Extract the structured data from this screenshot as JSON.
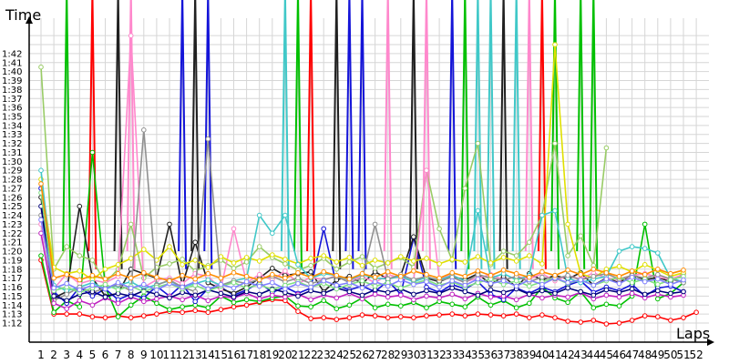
{
  "chart_data": {
    "type": "line",
    "title": "",
    "ylabel": "Time",
    "xlabel": "Laps",
    "grid": true,
    "legend": "none",
    "x": [
      1,
      2,
      3,
      4,
      5,
      6,
      7,
      8,
      9,
      10,
      11,
      12,
      13,
      14,
      15,
      16,
      17,
      18,
      19,
      20,
      21,
      22,
      23,
      24,
      25,
      26,
      27,
      28,
      29,
      30,
      31,
      32,
      33,
      34,
      35,
      36,
      37,
      38,
      39,
      40,
      41,
      42,
      43,
      44,
      45,
      46,
      47,
      48,
      49,
      50,
      51,
      52
    ],
    "y_ticks": [
      "1:12",
      "1:13",
      "1:14",
      "1:15",
      "1:16",
      "1:17",
      "1:18",
      "1:19",
      "1:20",
      "1:21",
      "1:22",
      "1:23",
      "1:24",
      "1:25",
      "1:26",
      "1:27",
      "1:28",
      "1:29",
      "1:30",
      "1:31",
      "1:32",
      "1:33",
      "1:34",
      "1:35",
      "1:36",
      "1:37",
      "1:38",
      "1:39",
      "1:40",
      "1:41",
      "1:42"
    ],
    "ylim": [
      71,
      104
    ],
    "series": [
      {
        "color": "#ff0000",
        "values": [
          79,
          73,
          73,
          73,
          72.7,
          72.6,
          72.8,
          72.6,
          72.8,
          73,
          73.3,
          73.2,
          73.4,
          73.2,
          73.5,
          73.8,
          74,
          74.3,
          74.6,
          74.5,
          73.3,
          72.5,
          72.6,
          72.4,
          72.6,
          72.9,
          72.8,
          72.6,
          72.7,
          72.6,
          72.8,
          72.9,
          73,
          72.8,
          73,
          72.9,
          72.8,
          73,
          72.6,
          72.9,
          72.6,
          72.2,
          72.1,
          72.3,
          71.9,
          72,
          72.3,
          72.8,
          72.7,
          72.3,
          72.6,
          73.2
        ]
      },
      {
        "color": "#00c000",
        "values": [
          79.5,
          73.2,
          74.5,
          73.8,
          91,
          76,
          72.7,
          74,
          75,
          74.2,
          73.5,
          73.8,
          74,
          73.7,
          75,
          74.3,
          74.6,
          74.4,
          74.8,
          75,
          73.9,
          73.8,
          74.5,
          73.6,
          74,
          74.8,
          73.7,
          74.1,
          73.9,
          74.3,
          73.7,
          74.4,
          74.1,
          73.8,
          74.9,
          74,
          74.5,
          73.7,
          74.2,
          76,
          74.8,
          74.3,
          75.5,
          73.7,
          74.1,
          73.9,
          75,
          83,
          74.7,
          75.3,
          76.5,
          null
        ]
      },
      {
        "color": "#1414d8",
        "values": [
          87,
          75.5,
          74.2,
          76,
          75,
          75.8,
          74.6,
          75.2,
          74.8,
          76.1,
          75,
          76.3,
          74.4,
          75.8,
          76,
          75.1,
          75.7,
          76.5,
          75.4,
          76,
          75.3,
          75.9,
          82.5,
          76.2,
          75.7,
          76.1,
          75.5,
          76.7,
          75.2,
          81.5,
          76,
          75.4,
          76.3,
          75.8,
          76.6,
          75.2,
          74.6,
          75.9,
          75.3,
          76,
          75.5,
          76.2,
          76.7,
          75.4,
          76,
          75.6,
          76.3,
          75,
          75.9,
          76.1,
          75.5,
          null
        ]
      },
      {
        "color": "#202020",
        "values": [
          86,
          74.8,
          75.5,
          85,
          77,
          75,
          75.3,
          78,
          77.5,
          77,
          83,
          76.2,
          81,
          76.5,
          75.8,
          75.3,
          76,
          77,
          78.1,
          77.3,
          77.5,
          77.7,
          75.5,
          76.8,
          77.2,
          76.4,
          77.7,
          76.9,
          77.3,
          81.6,
          77,
          76.6,
          77.2,
          76.8,
          77.5,
          76.3,
          77.2,
          76,
          77.5,
          76.8,
          77.3,
          76.9,
          77.6,
          76.2,
          77,
          76.5,
          77.4,
          76.8,
          77.1,
          76.6,
          77.5,
          null
        ]
      },
      {
        "color": "#99cc66",
        "values": [
          100.5,
          78,
          80.5,
          79.5,
          79,
          76.5,
          78,
          83,
          77,
          78.2,
          78.6,
          79.1,
          77.8,
          78.4,
          79,
          78.1,
          78.8,
          80.5,
          79.3,
          78.6,
          77.9,
          78.4,
          79.2,
          78,
          78.8,
          79.4,
          78.1,
          78.7,
          79.3,
          78.2,
          89,
          82.5,
          79,
          87,
          92,
          78.5,
          80,
          79.5,
          81,
          84,
          92,
          79.5,
          81.7,
          78.4,
          91.5,
          null,
          null,
          null,
          null,
          null,
          null,
          null
        ]
      },
      {
        "color": "#ff88cc",
        "values": [
          83,
          75.8,
          77.5,
          76.4,
          76.8,
          76.5,
          77.2,
          104,
          76,
          76.8,
          77,
          76.4,
          77.5,
          77.2,
          75.8,
          82.5,
          76.5,
          77.4,
          76.8,
          77.8,
          76.4,
          77.1,
          76.8,
          77.3,
          76.7,
          77.2,
          76.5,
          77.4,
          77,
          76.7,
          89,
          76.9,
          77.4,
          76.6,
          77,
          77.4,
          76.8,
          77.2,
          76.9,
          77.5,
          76.7,
          77.3,
          76.9,
          77.6,
          77,
          76.8,
          77.3,
          77.5,
          77.1,
          76.9,
          77.4,
          null
        ]
      },
      {
        "color": "#e0e000",
        "values": [
          88,
          78.2,
          77.5,
          77.8,
          76.8,
          78,
          78.5,
          79.2,
          80.2,
          79,
          80.5,
          78.5,
          79,
          78.2,
          79.4,
          78.7,
          79.3,
          78.9,
          79.6,
          79.1,
          78.6,
          79.2,
          79.5,
          78.8,
          79.3,
          78.4,
          79,
          78.7,
          79.4,
          78.9,
          79.2,
          78.6,
          79.1,
          78.8,
          79.4,
          78.7,
          79.3,
          78.9,
          79.5,
          78.6,
          103,
          83,
          77.5,
          77,
          78,
          78.3,
          77.7,
          78.5,
          77.9,
          77.2,
          77.6,
          null
        ]
      },
      {
        "color": "#40c8c8",
        "values": [
          89,
          76.2,
          75.6,
          76,
          76.5,
          75.8,
          76.2,
          76.6,
          75.8,
          76.3,
          76.7,
          76,
          76.4,
          76.8,
          76.2,
          76.7,
          77,
          84,
          82,
          84,
          78.5,
          77,
          77.5,
          77.3,
          76.8,
          77.4,
          77,
          76.9,
          77.2,
          76.6,
          77.1,
          76.8,
          77.3,
          76.7,
          84.5,
          77,
          77.5,
          76.8,
          77.3,
          84,
          84.5,
          77,
          76.5,
          76.9,
          77.2,
          80,
          80.5,
          80.3,
          79.8,
          77,
          76.6,
          null
        ]
      },
      {
        "color": "#909090",
        "values": [
          84,
          74.5,
          75.2,
          76,
          75.4,
          75.9,
          76.3,
          75.6,
          93.5,
          76.2,
          76.8,
          76,
          75.5,
          92.5,
          76.2,
          76.7,
          76.4,
          76.9,
          77.2,
          76.6,
          77,
          76.4,
          76.8,
          77.2,
          76.5,
          77,
          83,
          76.9,
          77.4,
          76.8,
          77.2,
          76.7,
          77.1,
          76.5,
          77.4,
          77,
          76.8,
          77.2,
          76.6,
          77.1,
          76.9,
          77.3,
          76.8,
          77.2,
          77.5,
          76.9,
          77.3,
          77,
          77.4,
          76.9,
          76.5,
          null
        ]
      },
      {
        "color": "#c020c0",
        "values": [
          82,
          74.2,
          73.6,
          74.5,
          74,
          74.8,
          74.2,
          74.9,
          74.4,
          74.7,
          75,
          74.6,
          75.1,
          74.5,
          75,
          74.8,
          75.3,
          74.7,
          75.1,
          74.9,
          75.2,
          74.6,
          75.1,
          74.8,
          75.3,
          74.7,
          75.2,
          74.9,
          75.1,
          74.6,
          75,
          74.8,
          75.2,
          74.7,
          75.3,
          74.9,
          75,
          74.6,
          75.2,
          74.8,
          75.1,
          74.9,
          75.4,
          74.7,
          75.1,
          74.9,
          75.3,
          74.8,
          75.2,
          74.9,
          75.1,
          null
        ]
      },
      {
        "color": "#00007a",
        "values": [
          85,
          75,
          74.5,
          75.2,
          75.5,
          74.9,
          75.3,
          75,
          75.6,
          75.2,
          74.8,
          75.4,
          75.1,
          75.7,
          75.3,
          74.9,
          75.5,
          75.2,
          75.8,
          75.4,
          75,
          75.6,
          75.3,
          75.9,
          75.5,
          75.1,
          75.7,
          75.4,
          75.8,
          75.2,
          75.6,
          75.3,
          75.9,
          75.5,
          75.1,
          75.7,
          75.4,
          75.8,
          75.2,
          75.6,
          75.3,
          75.9,
          75.5,
          75.1,
          75.7,
          75.4,
          75.8,
          75.2,
          75.6,
          75.3,
          75.5,
          null
        ]
      },
      {
        "color": "#80e080",
        "values": [
          86.5,
          75.6,
          76,
          75.4,
          75.9,
          76.3,
          75.7,
          76.1,
          75.5,
          76,
          76.4,
          75.8,
          76.2,
          75.6,
          76.1,
          76.5,
          75.9,
          76.3,
          75.7,
          76.2,
          76.6,
          76,
          76.4,
          75.8,
          76.3,
          76.7,
          76.1,
          76.5,
          75.9,
          76.4,
          76.8,
          76.2,
          76.6,
          76,
          76.5,
          76.9,
          76.3,
          76.7,
          76.1,
          76.6,
          77,
          76.4,
          76.8,
          76.2,
          76.7,
          77.1,
          76.5,
          76.9,
          76.3,
          76.8,
          77.2,
          null
        ]
      },
      {
        "color": "#8080ff",
        "values": [
          83.5,
          75.9,
          76.4,
          75.7,
          76.2,
          75.8,
          76.5,
          75.9,
          76.3,
          75.7,
          76.4,
          76,
          76.6,
          75.8,
          76.3,
          75.9,
          76.6,
          76.1,
          76.5,
          75.8,
          76.4,
          76,
          76.7,
          76.2,
          76.5,
          75.9,
          76.6,
          76.1,
          76.8,
          76.3,
          76.6,
          76,
          76.7,
          76.2,
          76.9,
          76.4,
          76.7,
          76.1,
          76.8,
          76.3,
          77,
          76.5,
          76.8,
          76.2,
          76.9,
          76.4,
          77.1,
          76.6,
          76.9,
          76.3,
          76.8,
          null
        ]
      },
      {
        "color": "#ff8c00",
        "values": [
          87.5,
          77,
          77.4,
          76.8,
          77.3,
          76.9,
          77.5,
          77,
          77.6,
          77.1,
          76.7,
          77.3,
          76.9,
          77.5,
          77,
          77.6,
          77.2,
          76.8,
          77.4,
          77,
          77.6,
          77.1,
          77.7,
          77.3,
          76.9,
          77.5,
          77.1,
          77.7,
          77.2,
          77.8,
          77.4,
          77,
          77.6,
          77.2,
          77.8,
          77.3,
          77.9,
          77.5,
          77.1,
          77.7,
          77.3,
          77.9,
          77.4,
          78,
          77.6,
          77.2,
          77.8,
          77.4,
          78,
          77.5,
          77.9,
          null
        ]
      }
    ],
    "spikes": [
      {
        "color": "#00c000",
        "x": 3
      },
      {
        "color": "#ff0000",
        "x": 5
      },
      {
        "color": "#202020",
        "x": 7
      },
      {
        "color": "#ff88cc",
        "x": 8
      },
      {
        "color": "#1414d8",
        "x": 12
      },
      {
        "color": "#202020",
        "x": 13
      },
      {
        "color": "#1414d8",
        "x": 14
      },
      {
        "color": "#40c8c8",
        "x": 20
      },
      {
        "color": "#00c000",
        "x": 21
      },
      {
        "color": "#ff0000",
        "x": 22
      },
      {
        "color": "#202020",
        "x": 24
      },
      {
        "color": "#1414d8",
        "x": 25
      },
      {
        "color": "#1414d8",
        "x": 26
      },
      {
        "color": "#ff88cc",
        "x": 28
      },
      {
        "color": "#202020",
        "x": 30
      },
      {
        "color": "#ff88cc",
        "x": 31
      },
      {
        "color": "#1414d8",
        "x": 33
      },
      {
        "color": "#00c000",
        "x": 34
      },
      {
        "color": "#40c8c8",
        "x": 35
      },
      {
        "color": "#40c8c8",
        "x": 36
      },
      {
        "color": "#202020",
        "x": 37
      },
      {
        "color": "#40c8c8",
        "x": 38
      },
      {
        "color": "#ff88cc",
        "x": 39
      },
      {
        "color": "#ff0000",
        "x": 40
      },
      {
        "color": "#00c000",
        "x": 41
      },
      {
        "color": "#00c000",
        "x": 43
      },
      {
        "color": "#00c000",
        "x": 44
      }
    ]
  }
}
